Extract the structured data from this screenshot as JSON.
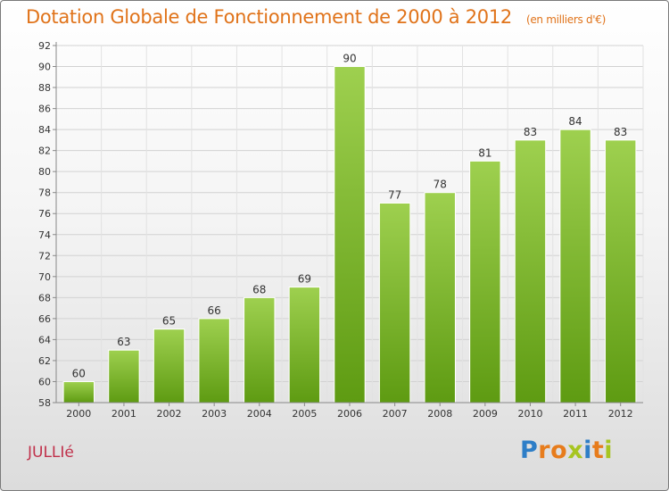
{
  "header": {
    "title": "Dotation Globale de Fonctionnement de 2000 à 2012",
    "subtitle": "(en milliers d'€)"
  },
  "commune_name": "JULLIé",
  "logo": {
    "text": "Proxiti",
    "letters": [
      "P",
      "r",
      "o",
      "x",
      "i",
      "t",
      "i"
    ],
    "letter_colors": [
      "#2e7ec7",
      "#e77c1c",
      "#e77c1c",
      "#a7c520",
      "#2e7ec7",
      "#e77c1c",
      "#a7c520"
    ]
  },
  "colors": {
    "bar_top": "#9ed04f",
    "bar_bottom": "#5e9b12",
    "title": "#e0731a",
    "commune": "#c0304a"
  },
  "chart_data": {
    "type": "bar",
    "categories": [
      "2000",
      "2001",
      "2002",
      "2003",
      "2004",
      "2005",
      "2006",
      "2007",
      "2008",
      "2009",
      "2010",
      "2011",
      "2012"
    ],
    "values": [
      60,
      63,
      65,
      66,
      68,
      69,
      90,
      77,
      78,
      81,
      83,
      84,
      83
    ],
    "ylim": [
      58,
      92
    ],
    "yticks": [
      58,
      60,
      62,
      64,
      66,
      68,
      70,
      72,
      74,
      76,
      78,
      80,
      82,
      84,
      86,
      88,
      90,
      92
    ],
    "grid": true,
    "title": "Dotation Globale de Fonctionnement de 2000 à 2012",
    "xlabel": "",
    "ylabel": ""
  }
}
